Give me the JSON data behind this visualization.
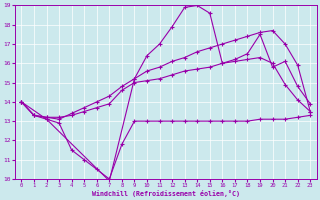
{
  "xlabel": "Windchill (Refroidissement éolien,°C)",
  "bg_color": "#cce9ed",
  "line_color": "#9900aa",
  "grid_color": "#ffffff",
  "xlim": [
    -0.5,
    23.5
  ],
  "ylim": [
    10,
    19
  ],
  "xticks": [
    0,
    1,
    2,
    3,
    4,
    5,
    6,
    7,
    8,
    9,
    10,
    11,
    12,
    13,
    14,
    15,
    16,
    17,
    18,
    19,
    20,
    21,
    22,
    23
  ],
  "yticks": [
    10,
    11,
    12,
    13,
    14,
    15,
    16,
    17,
    18,
    19
  ],
  "line1_x": [
    0,
    1,
    2,
    3,
    4,
    5,
    6,
    7,
    8,
    9,
    10,
    11,
    12,
    13,
    14,
    15,
    16,
    17,
    18,
    19,
    20,
    21,
    22,
    23
  ],
  "line1_y": [
    14.0,
    13.3,
    13.1,
    12.9,
    11.5,
    11.0,
    10.5,
    10.0,
    11.8,
    13.0,
    13.0,
    13.0,
    13.0,
    13.0,
    13.0,
    13.0,
    13.0,
    13.0,
    13.0,
    13.1,
    13.1,
    13.1,
    13.2,
    13.3
  ],
  "line2_x": [
    0,
    1,
    2,
    3,
    4,
    5,
    6,
    7,
    8,
    9,
    10,
    11,
    12,
    13,
    14,
    15,
    16,
    17,
    18,
    19,
    20,
    21,
    22,
    23
  ],
  "line2_y": [
    14.0,
    13.3,
    13.2,
    13.2,
    13.3,
    13.5,
    13.7,
    13.9,
    14.6,
    15.0,
    15.1,
    15.2,
    15.4,
    15.6,
    15.7,
    15.8,
    16.0,
    16.1,
    16.2,
    16.3,
    16.0,
    14.9,
    14.1,
    13.5
  ],
  "line3_x": [
    0,
    2,
    7,
    9,
    10,
    11,
    12,
    13,
    14,
    15,
    16,
    17,
    18,
    19,
    20,
    21,
    22,
    23
  ],
  "line3_y": [
    14.0,
    13.1,
    9.9,
    15.2,
    16.4,
    17.0,
    17.9,
    18.9,
    19.0,
    18.6,
    16.0,
    16.2,
    16.5,
    17.5,
    15.8,
    16.1,
    14.8,
    13.9
  ],
  "line4_x": [
    0,
    1,
    2,
    3,
    4,
    5,
    6,
    7,
    8,
    9,
    10,
    11,
    12,
    13,
    14,
    15,
    16,
    17,
    18,
    19,
    20,
    21,
    22,
    23
  ],
  "line4_y": [
    14.0,
    13.3,
    13.2,
    13.1,
    13.4,
    13.7,
    14.0,
    14.3,
    14.8,
    15.2,
    15.6,
    15.8,
    16.1,
    16.3,
    16.6,
    16.8,
    17.0,
    17.2,
    17.4,
    17.6,
    17.7,
    17.0,
    15.9,
    13.5
  ]
}
